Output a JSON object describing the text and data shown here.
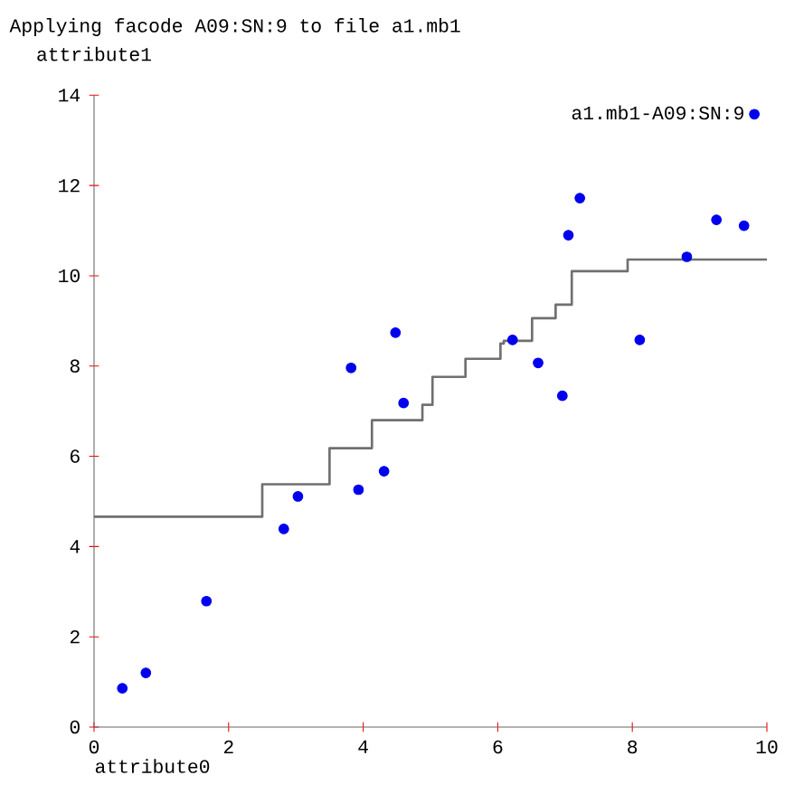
{
  "chart_data": {
    "type": "scatter",
    "title": "Applying facode A09:SN:9 to file a1.mb1",
    "ylabel": "attribute1",
    "xlabel": "attribute0",
    "xlim": [
      0,
      10
    ],
    "ylim": [
      0,
      14
    ],
    "xticks": [
      0,
      2,
      4,
      6,
      8,
      10
    ],
    "yticks": [
      0,
      2,
      4,
      6,
      8,
      10,
      12,
      14
    ],
    "grid": false,
    "legend": "top right",
    "series": [
      {
        "name": "a1.mb1-A09:SN:9",
        "marker": "circle",
        "color": "#0000ee",
        "x": [
          0.42,
          0.77,
          1.67,
          2.82,
          3.03,
          3.82,
          3.93,
          4.31,
          4.48,
          4.6,
          6.22,
          6.6,
          6.96,
          7.05,
          7.22,
          8.11,
          8.81,
          9.25,
          9.66
        ],
        "values": [
          0.86,
          1.2,
          2.79,
          4.39,
          5.11,
          7.96,
          5.26,
          5.67,
          8.74,
          7.18,
          8.58,
          8.07,
          7.34,
          10.9,
          11.72,
          8.58,
          10.42,
          11.24,
          11.11
        ]
      },
      {
        "type": "step",
        "marker": "none",
        "color": "#707070",
        "x": [
          0,
          2.5,
          3.5,
          4.13,
          4.88,
          5.03,
          5.52,
          6.04,
          6.09,
          6.51,
          6.86,
          7.1,
          7.93,
          10
        ],
        "values": [
          4.66,
          5.38,
          6.18,
          6.8,
          7.14,
          7.76,
          8.16,
          8.5,
          8.56,
          9.06,
          9.36,
          10.1,
          10.36,
          10.36
        ]
      }
    ]
  }
}
